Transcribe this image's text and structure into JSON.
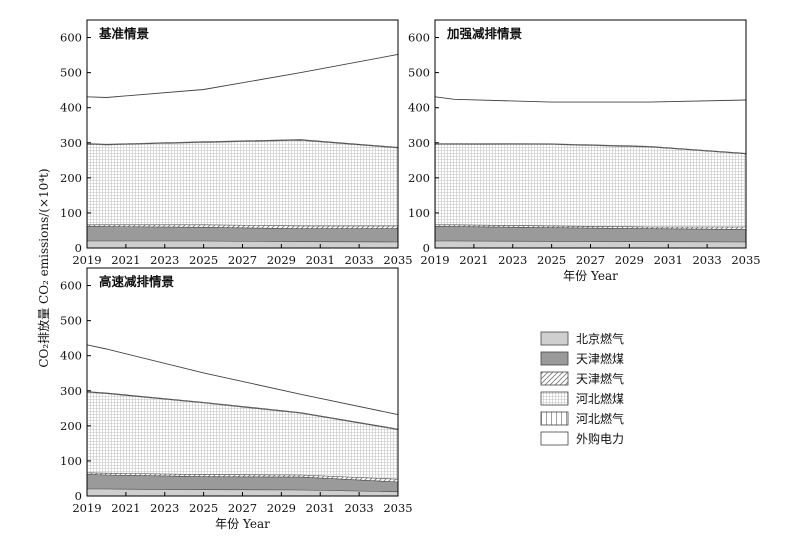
{
  "figure": {
    "ylabel": "CO₂排放量 CO₂ emissions/(×10⁴t)",
    "xlabel": "年份 Year"
  },
  "legend": [
    {
      "name": "北京燃气",
      "pattern": "fill-lightgray"
    },
    {
      "name": "天津燃煤",
      "pattern": "fill-darkgray"
    },
    {
      "name": "天津燃气",
      "pattern": "diagonal-hatch"
    },
    {
      "name": "河北燃煤",
      "pattern": "fine-grid"
    },
    {
      "name": "河北燃气",
      "pattern": "vertical-lines"
    },
    {
      "name": "外购电力",
      "pattern": "white"
    }
  ],
  "colors": {
    "beijing_gas": "#cfcfcf",
    "tianjin_coal": "#9a9a9a",
    "hatch_line": "#777777",
    "grid_line": "#c4c4c4",
    "outline": "#444444",
    "axis": "#000000"
  },
  "chart_data": [
    {
      "type": "area",
      "stacked": "cumulative",
      "title": "基准情景",
      "x": [
        2019,
        2020,
        2025,
        2030,
        2035
      ],
      "xticks": [
        "2019",
        "2021",
        "2023",
        "2025",
        "2027",
        "2029",
        "2031",
        "2033",
        "2035"
      ],
      "yticks": [
        "0",
        "100",
        "200",
        "300",
        "400",
        "500",
        "600"
      ],
      "xlim": [
        2019,
        2035
      ],
      "ylim": [
        0,
        650
      ],
      "xlabel": "",
      "series": [
        {
          "name": "北京燃气",
          "values": [
            20,
            20,
            20,
            18,
            17
          ]
        },
        {
          "name": "天津燃煤",
          "values": [
            62,
            61,
            59,
            55,
            55
          ]
        },
        {
          "name": "天津燃气",
          "values": [
            66,
            66,
            66,
            63,
            63
          ]
        },
        {
          "name": "河北燃煤",
          "values": [
            296,
            294,
            301,
            307,
            285
          ]
        },
        {
          "name": "河北燃气",
          "values": [
            298,
            296,
            303,
            309,
            287
          ]
        },
        {
          "name": "外购电力",
          "values": [
            431,
            429,
            452,
            500,
            552
          ]
        }
      ]
    },
    {
      "type": "area",
      "stacked": "cumulative",
      "title": "加强减排情景",
      "x": [
        2019,
        2020,
        2025,
        2030,
        2035
      ],
      "xticks": [
        "2019",
        "2021",
        "2023",
        "2025",
        "2027",
        "2029",
        "2031",
        "2033",
        "2035"
      ],
      "yticks": [
        "0",
        "100",
        "200",
        "300",
        "400",
        "500",
        "600"
      ],
      "xlim": [
        2019,
        2035
      ],
      "ylim": [
        0,
        650
      ],
      "xlabel": "年份 Year",
      "series": [
        {
          "name": "北京燃气",
          "values": [
            20,
            20,
            19,
            18,
            17
          ]
        },
        {
          "name": "天津燃煤",
          "values": [
            62,
            61,
            58,
            55,
            53
          ]
        },
        {
          "name": "天津燃气",
          "values": [
            66,
            66,
            63,
            60,
            60
          ]
        },
        {
          "name": "河北燃煤",
          "values": [
            296,
            296,
            295,
            288,
            268
          ]
        },
        {
          "name": "河北燃气",
          "values": [
            298,
            298,
            297,
            290,
            270
          ]
        },
        {
          "name": "外购电力",
          "values": [
            431,
            424,
            416,
            416,
            422
          ]
        }
      ]
    },
    {
      "type": "area",
      "stacked": "cumulative",
      "title": "高速减排情景",
      "x": [
        2019,
        2020,
        2025,
        2030,
        2035
      ],
      "xticks": [
        "2019",
        "2021",
        "2023",
        "2025",
        "2027",
        "2029",
        "2031",
        "2033",
        "2035"
      ],
      "yticks": [
        "0",
        "100",
        "200",
        "300",
        "400",
        "500",
        "600"
      ],
      "xlim": [
        2019,
        2035
      ],
      "ylim": [
        0,
        650
      ],
      "xlabel": "年份 Year",
      "series": [
        {
          "name": "北京燃气",
          "values": [
            20,
            20,
            18,
            17,
            12
          ]
        },
        {
          "name": "天津燃煤",
          "values": [
            62,
            60,
            55,
            54,
            40
          ]
        },
        {
          "name": "天津燃气",
          "values": [
            66,
            65,
            61,
            60,
            48
          ]
        },
        {
          "name": "河北燃煤",
          "values": [
            296,
            292,
            265,
            236,
            189
          ]
        },
        {
          "name": "河北燃气",
          "values": [
            298,
            294,
            267,
            238,
            191
          ]
        },
        {
          "name": "外购电力",
          "values": [
            431,
            419,
            351,
            290,
            232
          ]
        }
      ]
    }
  ]
}
